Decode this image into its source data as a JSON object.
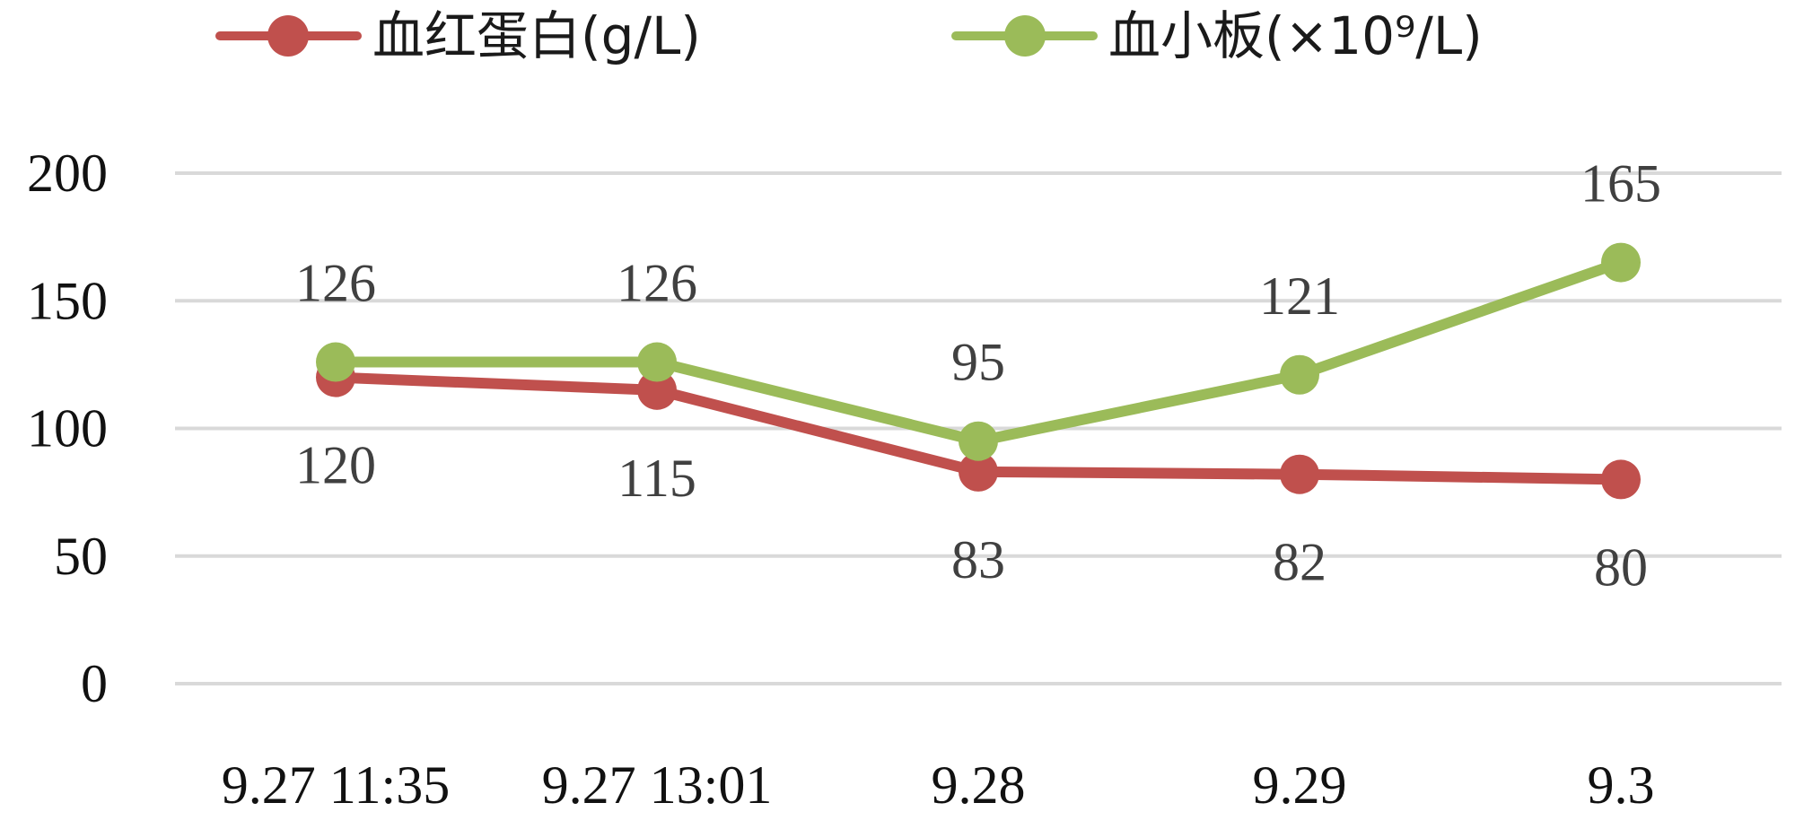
{
  "chart_data": {
    "type": "line",
    "title": "",
    "xlabel": "",
    "ylabel": "",
    "categories": [
      "9.27 11:35",
      "9.27 13:01",
      "9.28",
      "9.29",
      "9.3"
    ],
    "ylim": [
      0,
      200
    ],
    "yticks": [
      0,
      50,
      100,
      150,
      200
    ],
    "grid": true,
    "legend": "top",
    "series": [
      {
        "name": "血红蛋白(g/L)",
        "values": [
          120,
          115,
          83,
          82,
          80
        ],
        "color": "#C0504D",
        "label_position": "below"
      },
      {
        "name": "血小板(×10⁹/L)",
        "values": [
          126,
          126,
          95,
          121,
          165
        ],
        "color": "#9BBB59",
        "label_position": "above"
      }
    ]
  }
}
